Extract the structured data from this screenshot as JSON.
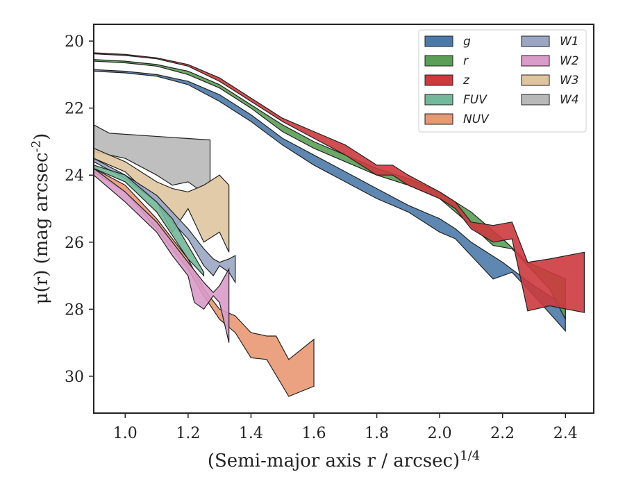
{
  "chart_data": {
    "type": "area",
    "xlabel": "(Semi-major axis r / arcsec)^{1/4}",
    "ylabel": "μ(r) (mag arcsec^{-2})",
    "xlim": [
      0.9,
      2.49
    ],
    "ylim": [
      31.1,
      19.5
    ],
    "y_inverted": true,
    "x_ticks": [
      "1.0",
      "1.2",
      "1.4",
      "1.6",
      "1.8",
      "2.0",
      "2.2",
      "2.4"
    ],
    "y_ticks": [
      "20",
      "22",
      "24",
      "26",
      "28",
      "30"
    ],
    "grid": false,
    "legend_position": "top-right",
    "legend_columns": 2,
    "series": [
      {
        "name": "g",
        "color": "#4c7aa8",
        "upper": [
          [
            0.9,
            20.85
          ],
          [
            1.0,
            20.9
          ],
          [
            1.1,
            21.0
          ],
          [
            1.2,
            21.2
          ],
          [
            1.3,
            21.6
          ],
          [
            1.4,
            22.2
          ],
          [
            1.5,
            22.9
          ],
          [
            1.6,
            23.4
          ],
          [
            1.7,
            23.9
          ],
          [
            1.8,
            24.4
          ],
          [
            1.9,
            24.9
          ],
          [
            2.0,
            25.3
          ],
          [
            2.05,
            25.6
          ],
          [
            2.1,
            26.0
          ],
          [
            2.2,
            26.6
          ],
          [
            2.3,
            27.3
          ],
          [
            2.4,
            27.9
          ]
        ],
        "lower": [
          [
            0.9,
            20.9
          ],
          [
            1.0,
            20.95
          ],
          [
            1.1,
            21.05
          ],
          [
            1.2,
            21.3
          ],
          [
            1.3,
            21.8
          ],
          [
            1.4,
            22.4
          ],
          [
            1.5,
            23.1
          ],
          [
            1.6,
            23.7
          ],
          [
            1.7,
            24.2
          ],
          [
            1.8,
            24.7
          ],
          [
            1.9,
            25.1
          ],
          [
            2.0,
            25.7
          ],
          [
            2.05,
            25.9
          ],
          [
            2.1,
            26.4
          ],
          [
            2.17,
            27.1
          ],
          [
            2.23,
            26.9
          ],
          [
            2.3,
            27.6
          ],
          [
            2.4,
            28.65
          ]
        ]
      },
      {
        "name": "r",
        "color": "#5a9e57",
        "upper": [
          [
            0.9,
            20.55
          ],
          [
            1.0,
            20.6
          ],
          [
            1.1,
            20.7
          ],
          [
            1.2,
            20.9
          ],
          [
            1.3,
            21.3
          ],
          [
            1.4,
            21.9
          ],
          [
            1.5,
            22.5
          ],
          [
            1.6,
            23.0
          ],
          [
            1.7,
            23.4
          ],
          [
            1.8,
            23.8
          ],
          [
            1.9,
            24.1
          ],
          [
            2.0,
            24.5
          ],
          [
            2.1,
            25.1
          ],
          [
            2.2,
            25.9
          ],
          [
            2.28,
            26.6
          ],
          [
            2.4,
            27.1
          ]
        ],
        "lower": [
          [
            0.9,
            20.6
          ],
          [
            1.0,
            20.65
          ],
          [
            1.1,
            20.75
          ],
          [
            1.2,
            21.0
          ],
          [
            1.3,
            21.4
          ],
          [
            1.4,
            22.0
          ],
          [
            1.5,
            22.7
          ],
          [
            1.6,
            23.2
          ],
          [
            1.7,
            23.6
          ],
          [
            1.8,
            24.0
          ],
          [
            1.9,
            24.3
          ],
          [
            2.0,
            24.7
          ],
          [
            2.1,
            25.5
          ],
          [
            2.17,
            26.1
          ],
          [
            2.23,
            26.2
          ],
          [
            2.3,
            26.9
          ],
          [
            2.35,
            27.4
          ],
          [
            2.4,
            28.3
          ]
        ]
      },
      {
        "name": "z",
        "color": "#cc3a3e",
        "upper": [
          [
            0.9,
            20.35
          ],
          [
            1.0,
            20.4
          ],
          [
            1.1,
            20.5
          ],
          [
            1.2,
            20.7
          ],
          [
            1.3,
            21.1
          ],
          [
            1.4,
            21.7
          ],
          [
            1.5,
            22.3
          ],
          [
            1.6,
            22.7
          ],
          [
            1.7,
            23.1
          ],
          [
            1.8,
            23.7
          ],
          [
            1.85,
            23.7
          ],
          [
            1.9,
            24.0
          ],
          [
            2.0,
            24.5
          ],
          [
            2.05,
            24.8
          ],
          [
            2.1,
            25.4
          ],
          [
            2.17,
            25.5
          ],
          [
            2.23,
            25.4
          ],
          [
            2.28,
            26.6
          ],
          [
            2.35,
            26.5
          ],
          [
            2.46,
            26.3
          ]
        ],
        "lower": [
          [
            0.9,
            20.38
          ],
          [
            1.0,
            20.43
          ],
          [
            1.1,
            20.53
          ],
          [
            1.2,
            20.75
          ],
          [
            1.3,
            21.2
          ],
          [
            1.4,
            21.8
          ],
          [
            1.5,
            22.4
          ],
          [
            1.6,
            22.9
          ],
          [
            1.7,
            23.4
          ],
          [
            1.8,
            24.0
          ],
          [
            1.85,
            24.0
          ],
          [
            1.9,
            24.3
          ],
          [
            2.0,
            24.7
          ],
          [
            2.05,
            25.0
          ],
          [
            2.1,
            25.6
          ],
          [
            2.17,
            26.0
          ],
          [
            2.23,
            25.9
          ],
          [
            2.28,
            28.05
          ],
          [
            2.35,
            27.9
          ],
          [
            2.46,
            28.1
          ]
        ]
      },
      {
        "name": "FUV",
        "color": "#72b89a",
        "upper": [
          [
            0.9,
            23.7
          ],
          [
            1.0,
            24.0
          ],
          [
            1.1,
            24.8
          ],
          [
            1.15,
            25.3
          ],
          [
            1.2,
            26.1
          ],
          [
            1.25,
            26.9
          ]
        ],
        "lower": [
          [
            0.9,
            23.8
          ],
          [
            1.0,
            24.2
          ],
          [
            1.1,
            25.1
          ],
          [
            1.15,
            25.8
          ],
          [
            1.2,
            26.5
          ],
          [
            1.25,
            27.0
          ]
        ]
      },
      {
        "name": "NUV",
        "color": "#e89872",
        "upper": [
          [
            0.9,
            23.8
          ],
          [
            1.0,
            24.3
          ],
          [
            1.1,
            25.3
          ],
          [
            1.2,
            26.5
          ],
          [
            1.25,
            27.4
          ],
          [
            1.3,
            28.0
          ],
          [
            1.35,
            28.2
          ],
          [
            1.4,
            28.7
          ],
          [
            1.45,
            28.8
          ],
          [
            1.48,
            28.8
          ],
          [
            1.52,
            29.5
          ],
          [
            1.6,
            28.9
          ]
        ],
        "lower": [
          [
            0.9,
            23.9
          ],
          [
            1.0,
            24.5
          ],
          [
            1.1,
            25.6
          ],
          [
            1.2,
            26.8
          ],
          [
            1.25,
            27.6
          ],
          [
            1.3,
            28.3
          ],
          [
            1.35,
            28.7
          ],
          [
            1.4,
            29.45
          ],
          [
            1.45,
            29.5
          ],
          [
            1.52,
            30.6
          ],
          [
            1.6,
            30.3
          ]
        ]
      },
      {
        "name": "W1",
        "color": "#9aa6c4",
        "upper": [
          [
            0.9,
            23.5
          ],
          [
            1.0,
            24.0
          ],
          [
            1.1,
            24.6
          ],
          [
            1.15,
            25.1
          ],
          [
            1.2,
            25.6
          ],
          [
            1.25,
            26.2
          ],
          [
            1.28,
            26.5
          ],
          [
            1.3,
            26.6
          ],
          [
            1.33,
            26.5
          ],
          [
            1.35,
            26.4
          ]
        ],
        "lower": [
          [
            0.9,
            23.6
          ],
          [
            1.0,
            24.1
          ],
          [
            1.1,
            24.8
          ],
          [
            1.15,
            25.4
          ],
          [
            1.2,
            25.9
          ],
          [
            1.25,
            26.7
          ],
          [
            1.28,
            27.0
          ],
          [
            1.3,
            26.7
          ],
          [
            1.33,
            26.9
          ],
          [
            1.35,
            27.2
          ]
        ]
      },
      {
        "name": "W2",
        "color": "#d99bc8",
        "upper": [
          [
            0.9,
            23.8
          ],
          [
            1.0,
            24.5
          ],
          [
            1.1,
            25.4
          ],
          [
            1.15,
            26.0
          ],
          [
            1.2,
            26.6
          ],
          [
            1.25,
            27.2
          ],
          [
            1.28,
            27.5
          ],
          [
            1.3,
            27.3
          ],
          [
            1.33,
            26.8
          ]
        ],
        "lower": [
          [
            0.9,
            24.0
          ],
          [
            1.0,
            24.8
          ],
          [
            1.1,
            25.7
          ],
          [
            1.15,
            26.4
          ],
          [
            1.2,
            27.0
          ],
          [
            1.22,
            27.8
          ],
          [
            1.25,
            28.0
          ],
          [
            1.28,
            27.6
          ],
          [
            1.3,
            27.8
          ],
          [
            1.33,
            29.0
          ]
        ]
      },
      {
        "name": "W3",
        "color": "#dfc59f",
        "upper": [
          [
            0.9,
            23.2
          ],
          [
            1.0,
            23.6
          ],
          [
            1.1,
            24.2
          ],
          [
            1.15,
            24.4
          ],
          [
            1.2,
            24.5
          ],
          [
            1.25,
            24.3
          ],
          [
            1.3,
            24.0
          ],
          [
            1.33,
            24.3
          ]
        ],
        "lower": [
          [
            0.9,
            23.5
          ],
          [
            1.0,
            23.9
          ],
          [
            1.1,
            24.8
          ],
          [
            1.15,
            25.7
          ],
          [
            1.2,
            25.0
          ],
          [
            1.25,
            26.0
          ],
          [
            1.3,
            25.7
          ],
          [
            1.33,
            26.3
          ]
        ]
      },
      {
        "name": "W4",
        "color": "#b8b8b8",
        "upper": [
          [
            0.9,
            22.5
          ],
          [
            0.95,
            22.75
          ],
          [
            1.27,
            22.95
          ]
        ],
        "lower": [
          [
            0.9,
            23.3
          ],
          [
            1.0,
            23.5
          ],
          [
            1.1,
            24.0
          ],
          [
            1.15,
            24.3
          ],
          [
            1.2,
            24.2
          ],
          [
            1.23,
            24.4
          ],
          [
            1.27,
            24.2
          ]
        ]
      }
    ]
  }
}
